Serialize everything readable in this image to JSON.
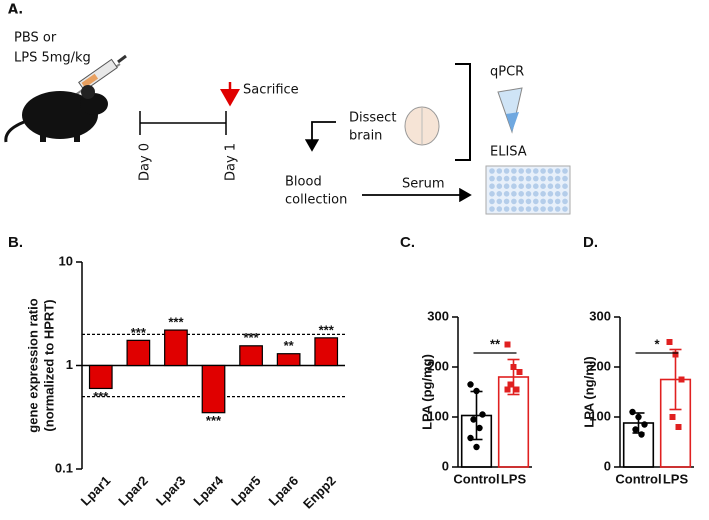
{
  "diagram": {
    "panel": "A.",
    "treatment": [
      "PBS or",
      "LPS 5mg/kg"
    ],
    "sacrifice": "Sacrifice",
    "day0": "Day 0",
    "day1": "Day 1",
    "dissect": [
      "Dissect",
      "brain"
    ],
    "blood": [
      "Blood",
      "collection"
    ],
    "serum": "Serum",
    "qpcr": "qPCR",
    "elisa": "ELISA"
  },
  "chart_data": [
    {
      "type": "bar",
      "panel": "B.",
      "ylabel": [
        "gene expression ratio",
        "(normalized to HPRT)"
      ],
      "log_scale": true,
      "categories": [
        "Lpar1",
        "Lpar2",
        "Lpar3",
        "Lpar4",
        "Lpar5",
        "Lpar6",
        "Enpp2"
      ],
      "values": [
        0.6,
        1.75,
        2.2,
        0.35,
        1.55,
        1.3,
        1.85
      ],
      "annotations": [
        "***",
        "***",
        "***",
        "***",
        "***",
        "**",
        "***"
      ],
      "color": "#e00000",
      "baseline": 1,
      "reference_lines": [
        2,
        0.5
      ],
      "ylim": [
        0.1,
        10
      ],
      "yticks": [
        0.1,
        1,
        10
      ]
    },
    {
      "type": "bar",
      "panel": "C.",
      "ylabel": "LPA (pg/mg)",
      "categories": [
        "Control",
        "LPS"
      ],
      "values": [
        103,
        180
      ],
      "errors": [
        48,
        35
      ],
      "points": [
        [
          165,
          152,
          105,
          95,
          78,
          58,
          40
        ],
        [
          245,
          200,
          190,
          165,
          155,
          155
        ]
      ],
      "colors": [
        "#000000",
        "#e02020"
      ],
      "significance": "**",
      "ylim": [
        0,
        300
      ],
      "yticks": [
        0,
        100,
        200,
        300
      ]
    },
    {
      "type": "bar",
      "panel": "D.",
      "ylabel": "LPA (ng/ml)",
      "categories": [
        "Control",
        "LPS"
      ],
      "values": [
        88,
        175
      ],
      "errors": [
        20,
        60
      ],
      "points": [
        [
          110,
          100,
          85,
          75,
          65
        ],
        [
          250,
          225,
          175,
          100,
          80
        ]
      ],
      "colors": [
        "#000000",
        "#e02020"
      ],
      "significance": "*",
      "ylim": [
        0,
        300
      ],
      "yticks": [
        0,
        100,
        200,
        300
      ]
    }
  ]
}
